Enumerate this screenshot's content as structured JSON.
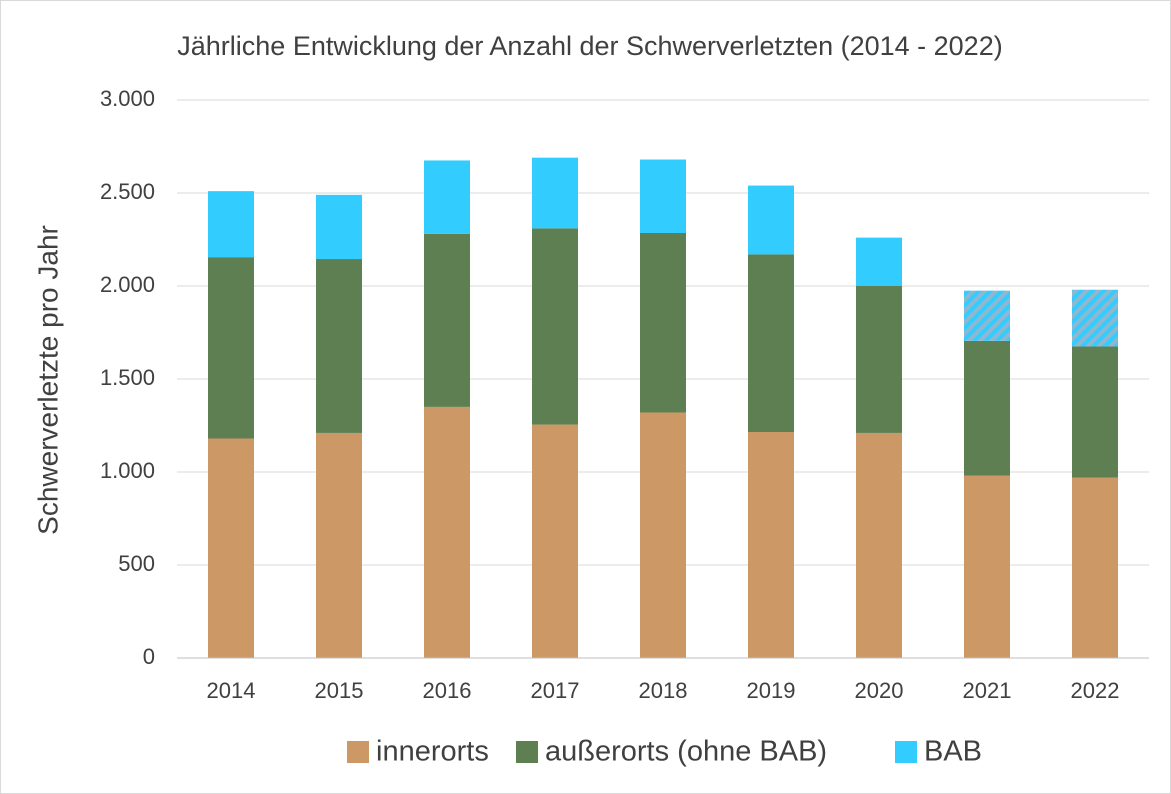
{
  "chart_data": {
    "type": "stacked_bar",
    "title": "Jährliche Entwicklung der Anzahl der Schwerverletzten (2014 - 2022)",
    "y_axis_label": "Schwerverletzte pro Jahr",
    "categories": [
      "2014",
      "2015",
      "2016",
      "2017",
      "2018",
      "2019",
      "2020",
      "2021",
      "2022"
    ],
    "series": [
      {
        "name": "innerorts",
        "color": "#cc9966",
        "values": [
          1180,
          1210,
          1350,
          1255,
          1320,
          1215,
          1210,
          980,
          970
        ]
      },
      {
        "name": "außerorts (ohne BAB)",
        "color": "#5e7f52",
        "values": [
          975,
          935,
          930,
          1055,
          965,
          955,
          790,
          725,
          705
        ]
      },
      {
        "name": "BAB",
        "color": "#33ccff",
        "values": [
          355,
          345,
          395,
          380,
          395,
          370,
          260,
          270,
          305
        ],
        "pattern": [
          null,
          null,
          null,
          null,
          null,
          null,
          null,
          "hatch",
          "hatch"
        ]
      }
    ],
    "ylim": [
      0,
      3000
    ],
    "yticks": [
      0,
      500,
      {
        "value": 1000,
        "label": "1.000"
      },
      {
        "value": 1500,
        "label": "1.500"
      },
      {
        "value": 2000,
        "label": "2.000"
      },
      {
        "value": 2500,
        "label": "2.500"
      },
      {
        "value": 3000,
        "label": "3.000"
      }
    ],
    "grid": true,
    "legend": "bottom"
  }
}
